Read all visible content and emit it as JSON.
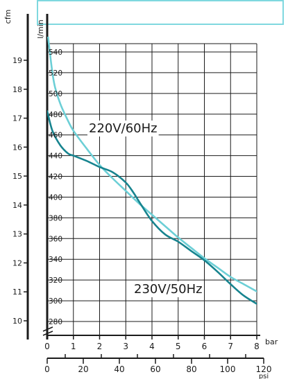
{
  "chart_data": {
    "type": "line",
    "y_axes": {
      "cfm": {
        "label": "cfm",
        "ticks": [
          "10",
          "11",
          "12",
          "13",
          "14",
          "15",
          "16",
          "17",
          "18",
          "19"
        ],
        "range": [
          10,
          19
        ]
      },
      "lmin": {
        "label": "l/min",
        "ticks": [
          "280",
          "300",
          "320",
          "340",
          "360",
          "380",
          "400",
          "420",
          "440",
          "460",
          "480",
          "500",
          "520",
          "540"
        ],
        "range": [
          280,
          540
        ]
      }
    },
    "x_axes": {
      "bar": {
        "label": "bar",
        "ticks": [
          "0",
          "1",
          "2",
          "3",
          "4",
          "5",
          "6",
          "7",
          "8"
        ],
        "range": [
          0,
          8
        ]
      },
      "psi": {
        "label": "psi",
        "ticks": [
          "0",
          "20",
          "40",
          "60",
          "80",
          "100",
          "120"
        ],
        "range": [
          0,
          120
        ]
      }
    },
    "grid": true,
    "series": [
      {
        "name": "220V/60Hz",
        "color": "#6ccfd6",
        "x": [
          0,
          0.1,
          0.2,
          0.3,
          0.5,
          0.75,
          1,
          1.5,
          2,
          2.5,
          3,
          3.5,
          4,
          4.5,
          5,
          5.5,
          6,
          6.5,
          7,
          7.5,
          8
        ],
        "y": [
          562,
          540,
          520,
          506,
          490,
          476,
          464,
          447,
          431,
          418,
          406,
          394,
          383,
          372,
          361,
          351,
          341,
          332,
          323,
          316,
          309
        ]
      },
      {
        "name": "230V/50Hz",
        "color": "#17848f",
        "x": [
          0,
          0.2,
          0.5,
          0.8,
          1,
          1.5,
          2,
          2.5,
          3,
          3.3,
          3.6,
          4,
          4.5,
          5,
          5.5,
          6,
          6.5,
          7,
          7.5,
          8
        ],
        "y": [
          483,
          464,
          450,
          442,
          440,
          435,
          429,
          424,
          414,
          404,
          392,
          377,
          364,
          357,
          348,
          339,
          328,
          316,
          305,
          297
        ]
      }
    ]
  }
}
